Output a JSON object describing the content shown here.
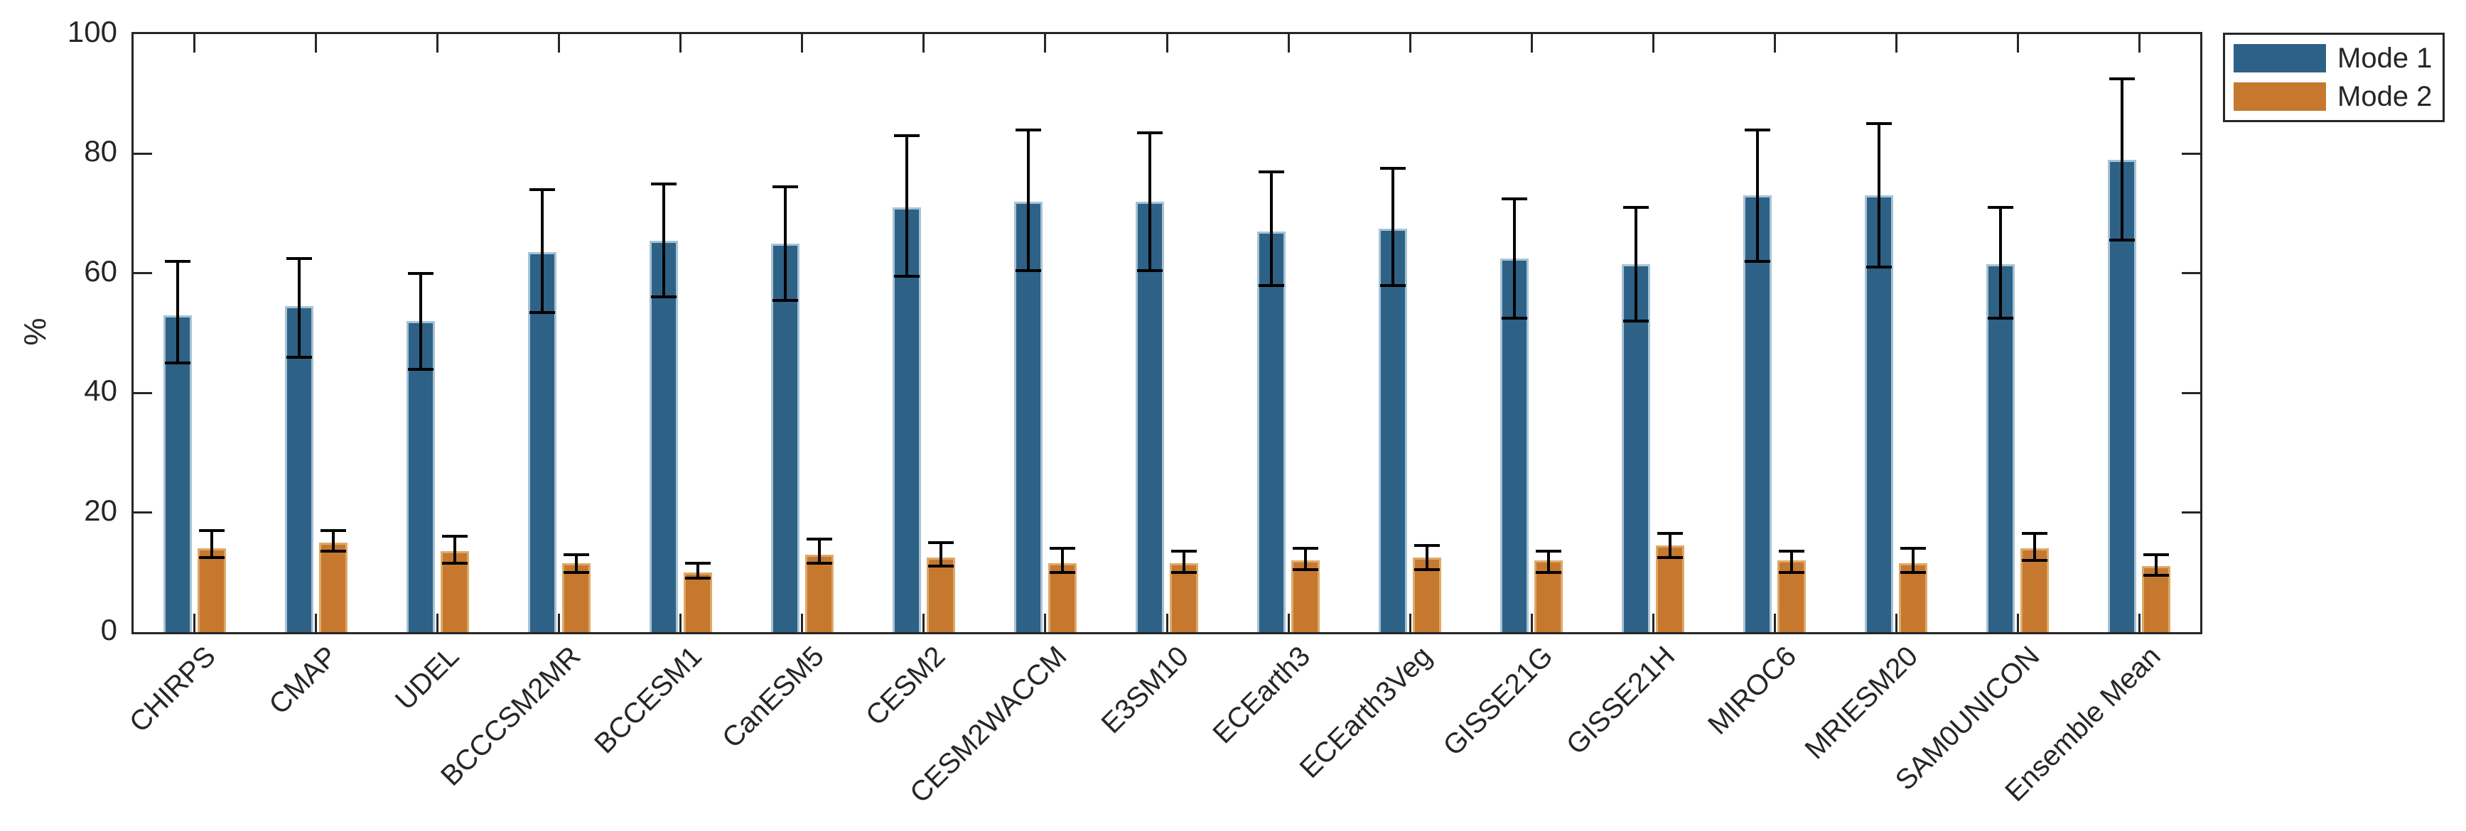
{
  "chart_data": {
    "type": "bar",
    "title": "",
    "xlabel": "",
    "ylabel": "%",
    "ylim": [
      0,
      100
    ],
    "yticks": [
      0,
      20,
      40,
      60,
      80,
      100
    ],
    "grid": false,
    "legend_position": "top-right",
    "axis_color": "#262626",
    "error_bar_color": "#000000",
    "categories": [
      "CHIRPS",
      "CMAP",
      "UDEL",
      "BCCCSM2MR",
      "BCCESM1",
      "CanESM5",
      "CESM2",
      "CESM2WACCM",
      "E3SM10",
      "ECEarth3",
      "ECEarth3Veg",
      "GISSE21G",
      "GISSE21H",
      "MIROC6",
      "MRIESM20",
      "SAM0UNICON",
      "Ensemble Mean"
    ],
    "series": [
      {
        "name": "Mode 1",
        "color": "#2E6186",
        "edge_color": "#A6C3D6",
        "values": [
          53,
          54.5,
          52,
          63.5,
          65.5,
          65,
          71,
          72,
          72,
          67,
          67.5,
          62.5,
          61.5,
          73,
          73,
          61.5,
          79
        ],
        "err_high": [
          62,
          62.5,
          60,
          74,
          75,
          74.5,
          83,
          84,
          83.5,
          77,
          77.5,
          72.5,
          71,
          84,
          85,
          71,
          92.5
        ],
        "err_low": [
          45,
          46,
          44,
          53.5,
          56,
          55.5,
          59.5,
          60.5,
          60.5,
          58,
          58,
          52.5,
          52,
          62,
          61,
          52.5,
          65.5
        ]
      },
      {
        "name": "Mode 2",
        "color": "#C6782F",
        "edge_color": "#DDA968",
        "values": [
          14,
          15,
          13.5,
          11.5,
          10,
          13,
          12.5,
          11.5,
          11.5,
          12,
          12.5,
          12,
          14.5,
          12,
          11.5,
          14,
          11
        ],
        "err_high": [
          17,
          17,
          16,
          13,
          11.5,
          15.5,
          15,
          14,
          13.5,
          14,
          14.5,
          13.5,
          16.5,
          13.5,
          14,
          16.5,
          13
        ],
        "err_low": [
          12.5,
          13.5,
          11.5,
          10,
          9,
          11.5,
          11,
          10,
          10,
          10.5,
          10.5,
          10,
          12.5,
          10,
          10,
          12,
          9.5
        ]
      }
    ]
  }
}
